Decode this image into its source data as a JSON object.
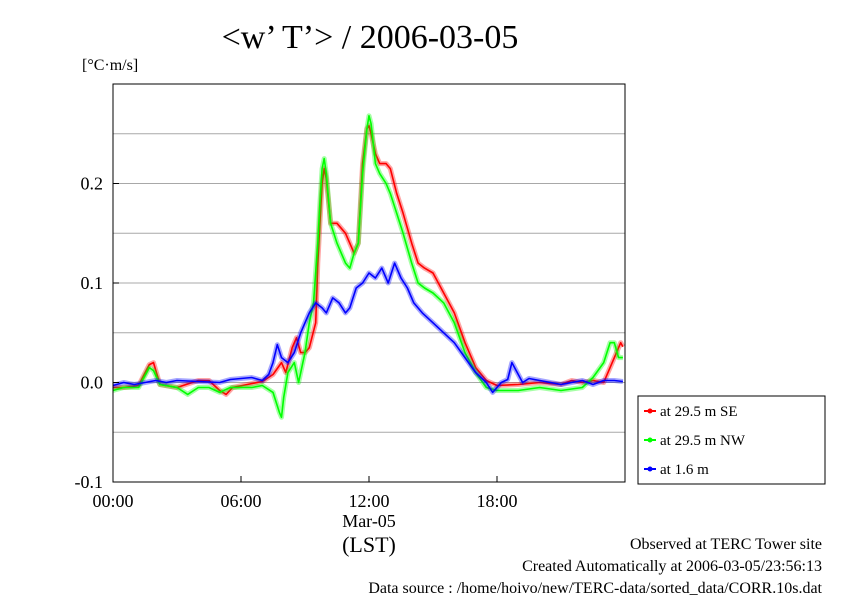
{
  "chart_data": {
    "type": "line",
    "title": "<w’ T’> / 2006-03-05",
    "ylabel": "[°C·m/s]",
    "xlabel": "(LST)",
    "xsub_label": "Mar-05",
    "xlim": [
      0,
      24
    ],
    "ylim": [
      -0.1,
      0.3
    ],
    "x_ticks": [
      {
        "value": 0,
        "label": "00:00"
      },
      {
        "value": 6,
        "label": "06:00"
      },
      {
        "value": 12,
        "label": "12:00"
      },
      {
        "value": 18,
        "label": "18:00"
      }
    ],
    "y_ticks": [
      {
        "value": -0.1,
        "label": "-0.1"
      },
      {
        "value": 0.0,
        "label": "0.0"
      },
      {
        "value": 0.1,
        "label": "0.1"
      },
      {
        "value": 0.2,
        "label": "0.2"
      }
    ],
    "grid": "horizontal",
    "legend_position": "right-outside",
    "series": [
      {
        "name": "at 29.5 m SE",
        "color": "#ff0000",
        "points": [
          [
            0,
            -0.005
          ],
          [
            0.5,
            -0.005
          ],
          [
            1.2,
            -0.003
          ],
          [
            1.7,
            0.018
          ],
          [
            1.9,
            0.02
          ],
          [
            2.2,
            -0.002
          ],
          [
            3,
            -0.005
          ],
          [
            4,
            0.002
          ],
          [
            4.5,
            0.002
          ],
          [
            5,
            -0.008
          ],
          [
            5.3,
            -0.012
          ],
          [
            5.6,
            -0.005
          ],
          [
            6.3,
            -0.002
          ],
          [
            7,
            0.001
          ],
          [
            7.5,
            0.008
          ],
          [
            7.9,
            0.02
          ],
          [
            8.1,
            0.01
          ],
          [
            8.4,
            0.035
          ],
          [
            8.6,
            0.045
          ],
          [
            8.8,
            0.03
          ],
          [
            9.0,
            0.03
          ],
          [
            9.2,
            0.035
          ],
          [
            9.5,
            0.06
          ],
          [
            9.6,
            0.12
          ],
          [
            9.7,
            0.16
          ],
          [
            9.8,
            0.2
          ],
          [
            9.9,
            0.215
          ],
          [
            10.0,
            0.205
          ],
          [
            10.2,
            0.16
          ],
          [
            10.5,
            0.16
          ],
          [
            10.9,
            0.15
          ],
          [
            11.1,
            0.14
          ],
          [
            11.3,
            0.13
          ],
          [
            11.5,
            0.14
          ],
          [
            11.7,
            0.22
          ],
          [
            11.9,
            0.255
          ],
          [
            12.0,
            0.258
          ],
          [
            12.1,
            0.25
          ],
          [
            12.3,
            0.23
          ],
          [
            12.5,
            0.22
          ],
          [
            12.8,
            0.22
          ],
          [
            13.0,
            0.215
          ],
          [
            13.3,
            0.19
          ],
          [
            13.6,
            0.17
          ],
          [
            14.0,
            0.14
          ],
          [
            14.3,
            0.12
          ],
          [
            14.6,
            0.115
          ],
          [
            15.0,
            0.11
          ],
          [
            15.5,
            0.09
          ],
          [
            16.0,
            0.07
          ],
          [
            16.5,
            0.04
          ],
          [
            17.0,
            0.015
          ],
          [
            17.5,
            0.002
          ],
          [
            18.0,
            -0.003
          ],
          [
            19,
            -0.002
          ],
          [
            20,
            0.0
          ],
          [
            21,
            -0.002
          ],
          [
            21.5,
            0.002
          ],
          [
            22,
            0.0
          ],
          [
            22.5,
            0.002
          ],
          [
            23,
            0.0
          ],
          [
            23.3,
            0.015
          ],
          [
            23.6,
            0.03
          ],
          [
            23.8,
            0.04
          ],
          [
            23.9,
            0.036
          ]
        ]
      },
      {
        "name": "at 29.5 m NW",
        "color": "#00ff00",
        "points": [
          [
            0,
            -0.008
          ],
          [
            0.5,
            -0.005
          ],
          [
            1.2,
            -0.005
          ],
          [
            1.7,
            0.015
          ],
          [
            1.9,
            0.012
          ],
          [
            2.2,
            -0.002
          ],
          [
            3,
            -0.005
          ],
          [
            3.5,
            -0.012
          ],
          [
            4,
            -0.005
          ],
          [
            4.5,
            -0.005
          ],
          [
            5,
            -0.01
          ],
          [
            5.5,
            -0.005
          ],
          [
            6.5,
            -0.005
          ],
          [
            7,
            -0.003
          ],
          [
            7.5,
            -0.01
          ],
          [
            7.8,
            -0.03
          ],
          [
            7.9,
            -0.035
          ],
          [
            8.0,
            -0.015
          ],
          [
            8.2,
            0.01
          ],
          [
            8.5,
            0.02
          ],
          [
            8.7,
            0.0
          ],
          [
            9.0,
            0.03
          ],
          [
            9.2,
            0.06
          ],
          [
            9.4,
            0.08
          ],
          [
            9.6,
            0.14
          ],
          [
            9.7,
            0.18
          ],
          [
            9.8,
            0.215
          ],
          [
            9.9,
            0.225
          ],
          [
            10.0,
            0.21
          ],
          [
            10.2,
            0.16
          ],
          [
            10.5,
            0.14
          ],
          [
            10.9,
            0.12
          ],
          [
            11.1,
            0.115
          ],
          [
            11.3,
            0.13
          ],
          [
            11.5,
            0.14
          ],
          [
            11.7,
            0.21
          ],
          [
            11.9,
            0.255
          ],
          [
            12.0,
            0.268
          ],
          [
            12.1,
            0.26
          ],
          [
            12.3,
            0.22
          ],
          [
            12.5,
            0.21
          ],
          [
            12.8,
            0.2
          ],
          [
            13.0,
            0.19
          ],
          [
            13.3,
            0.17
          ],
          [
            13.6,
            0.15
          ],
          [
            14.0,
            0.12
          ],
          [
            14.3,
            0.1
          ],
          [
            14.6,
            0.095
          ],
          [
            15.0,
            0.09
          ],
          [
            15.5,
            0.08
          ],
          [
            16.0,
            0.06
          ],
          [
            16.5,
            0.03
          ],
          [
            17.0,
            0.01
          ],
          [
            17.5,
            -0.005
          ],
          [
            18.0,
            -0.008
          ],
          [
            19,
            -0.008
          ],
          [
            20,
            -0.005
          ],
          [
            21,
            -0.008
          ],
          [
            22,
            -0.005
          ],
          [
            22.5,
            0.005
          ],
          [
            23,
            0.02
          ],
          [
            23.3,
            0.04
          ],
          [
            23.5,
            0.04
          ],
          [
            23.7,
            0.025
          ],
          [
            23.9,
            0.025
          ]
        ]
      },
      {
        "name": "at 1.6 m",
        "color": "#0000ff",
        "points": [
          [
            0,
            -0.003
          ],
          [
            0.5,
            0.0
          ],
          [
            1,
            -0.002
          ],
          [
            1.5,
            0.0
          ],
          [
            2,
            0.002
          ],
          [
            2.5,
            0.0
          ],
          [
            3,
            0.002
          ],
          [
            4,
            0.001
          ],
          [
            5,
            0.0
          ],
          [
            5.5,
            0.003
          ],
          [
            6,
            0.004
          ],
          [
            6.5,
            0.005
          ],
          [
            7,
            0.002
          ],
          [
            7.3,
            0.008
          ],
          [
            7.5,
            0.02
          ],
          [
            7.7,
            0.038
          ],
          [
            7.9,
            0.025
          ],
          [
            8.2,
            0.02
          ],
          [
            8.5,
            0.03
          ],
          [
            8.8,
            0.05
          ],
          [
            9.0,
            0.06
          ],
          [
            9.2,
            0.07
          ],
          [
            9.5,
            0.08
          ],
          [
            9.8,
            0.075
          ],
          [
            10.0,
            0.07
          ],
          [
            10.3,
            0.085
          ],
          [
            10.6,
            0.08
          ],
          [
            10.9,
            0.07
          ],
          [
            11.1,
            0.075
          ],
          [
            11.4,
            0.095
          ],
          [
            11.7,
            0.1
          ],
          [
            12.0,
            0.11
          ],
          [
            12.3,
            0.105
          ],
          [
            12.6,
            0.115
          ],
          [
            12.9,
            0.1
          ],
          [
            13.2,
            0.12
          ],
          [
            13.5,
            0.105
          ],
          [
            13.8,
            0.095
          ],
          [
            14.1,
            0.08
          ],
          [
            14.5,
            0.07
          ],
          [
            15.0,
            0.06
          ],
          [
            15.5,
            0.05
          ],
          [
            16.0,
            0.04
          ],
          [
            16.5,
            0.025
          ],
          [
            17.0,
            0.01
          ],
          [
            17.5,
            0.0
          ],
          [
            17.8,
            -0.01
          ],
          [
            18.2,
            0.0
          ],
          [
            18.5,
            0.003
          ],
          [
            18.7,
            0.02
          ],
          [
            18.9,
            0.012
          ],
          [
            19.2,
            0.0
          ],
          [
            19.5,
            0.004
          ],
          [
            20,
            0.002
          ],
          [
            21,
            -0.002
          ],
          [
            22,
            0.002
          ],
          [
            22.5,
            -0.002
          ],
          [
            23,
            0.002
          ],
          [
            23.5,
            0.002
          ],
          [
            23.9,
            0.001
          ]
        ]
      }
    ]
  },
  "footer": {
    "line1": "Observed at TERC Tower site",
    "line2": "Created Automatically at 2006-03-05/23:56:13",
    "line3": "Data source : /home/hoivo/new/TERC-data/sorted_data/CORR.10s.dat"
  }
}
